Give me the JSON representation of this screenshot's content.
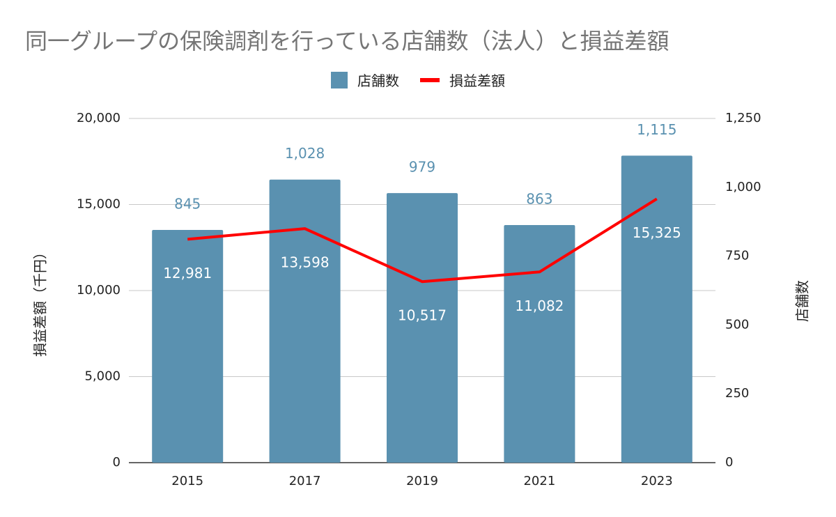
{
  "chart_data": {
    "type": "bar",
    "title": "同一グループの保険調剤を行っている店舗数（法人）と損益差額",
    "categories": [
      "2015",
      "2017",
      "2019",
      "2021",
      "2023"
    ],
    "series": [
      {
        "name": "店舗数",
        "type": "bar",
        "axis": "right",
        "color": "#5a91b0",
        "values": [
          845,
          1028,
          979,
          863,
          1115
        ],
        "labels": [
          "845",
          "1,028",
          "979",
          "863",
          "1,115"
        ]
      },
      {
        "name": "損益差額",
        "type": "line",
        "axis": "left",
        "color": "#ff0000",
        "values": [
          12981,
          13598,
          10517,
          11082,
          15325
        ],
        "labels": [
          "12,981",
          "13,598",
          "10,517",
          "11,082",
          "15,325"
        ]
      }
    ],
    "ylabel_left": "損益差額（千円）",
    "ylabel_right": "店舗数",
    "ylim_left": [
      0,
      20000
    ],
    "ylim_right": [
      0,
      1250
    ],
    "yticks_left": [
      "0",
      "5,000",
      "10,000",
      "15,000",
      "20,000"
    ],
    "yticks_right": [
      "0",
      "250",
      "500",
      "750",
      "1,000",
      "1,250"
    ],
    "grid": true,
    "legend_position": "top-center"
  }
}
